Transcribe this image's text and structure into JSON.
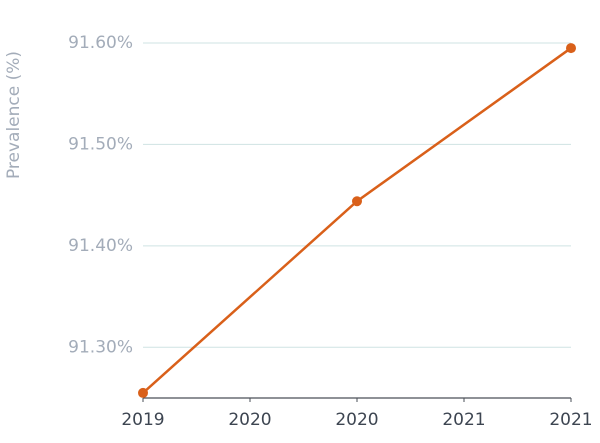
{
  "chart_data": {
    "type": "line",
    "y_label": "Prevalence (%)",
    "x": [
      2019,
      2020,
      2021
    ],
    "values": [
      91.255,
      91.444,
      91.595
    ],
    "color": "#d9601a",
    "xlim": [
      2019,
      2021
    ],
    "xticks": [
      2019,
      {
        "value": 2019.5,
        "label": "2020"
      },
      2020,
      {
        "value": 2020.5,
        "label": "2021"
      },
      2021
    ],
    "ylim": [
      91.25,
      91.6
    ],
    "yticks": [
      {
        "value": 91.3,
        "label": "91.30%"
      },
      {
        "value": 91.4,
        "label": "91.40%"
      },
      {
        "value": 91.5,
        "label": "91.50%"
      },
      {
        "value": 91.6,
        "label": "91.60%"
      }
    ],
    "grid": true
  }
}
